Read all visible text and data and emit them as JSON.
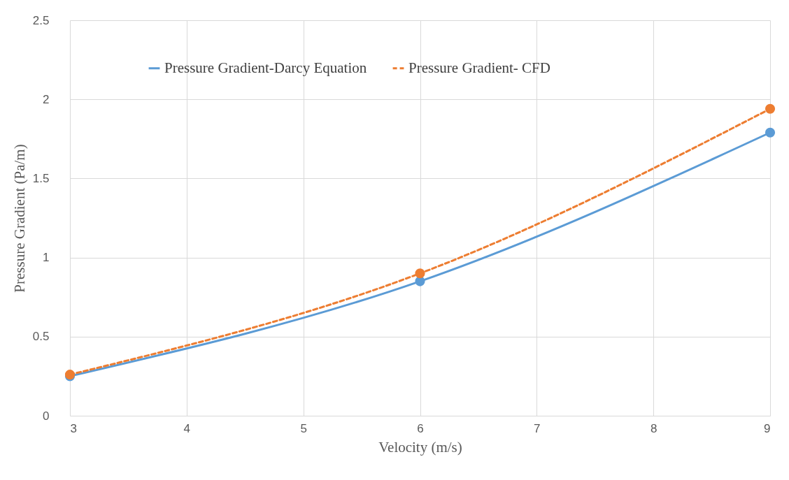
{
  "chart_data": {
    "type": "line",
    "xlabel": "Velocity (m/s)",
    "ylabel": "Pressure Gradient (Pa/m)",
    "x": [
      3,
      6,
      9
    ],
    "series": [
      {
        "name": "Pressure Gradient-Darcy Equation",
        "color": "#5b9bd5",
        "line_style": "solid",
        "values": [
          0.25,
          0.85,
          1.79
        ]
      },
      {
        "name": "Pressure Gradient- CFD",
        "color": "#ed7d31",
        "line_style": "dashed",
        "values": [
          0.26,
          0.9,
          1.94
        ]
      }
    ],
    "xlim": [
      3,
      9
    ],
    "xticks": [
      3,
      4,
      5,
      6,
      7,
      8,
      9
    ],
    "ylim": [
      0,
      2.5
    ],
    "yticks": [
      0,
      0.5,
      1,
      1.5,
      2,
      2.5
    ],
    "grid": true,
    "legend": "top",
    "marker": "circle"
  }
}
